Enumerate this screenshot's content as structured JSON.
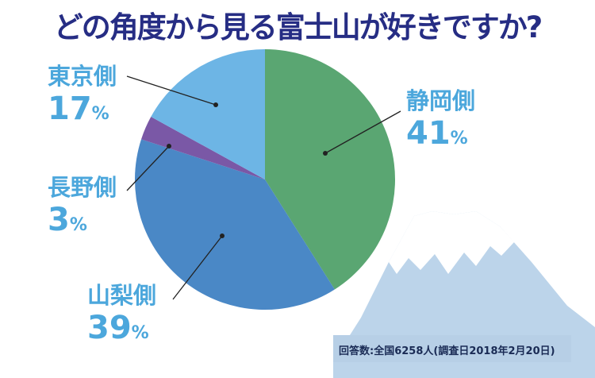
{
  "chart_data": {
    "type": "pie",
    "title": "どの角度から見る富士山が好きですか?",
    "slices": [
      {
        "label": "静岡側",
        "value": 41,
        "color": "#5aa672"
      },
      {
        "label": "山梨側",
        "value": 39,
        "color": "#4a88c6"
      },
      {
        "label": "長野側",
        "value": 3,
        "color": "#7a58a6"
      },
      {
        "label": "東京側",
        "value": 17,
        "color": "#6db5e5"
      }
    ],
    "unit": "%",
    "note": "回答数:全国6258人(調査日2018年2月20日)"
  }
}
